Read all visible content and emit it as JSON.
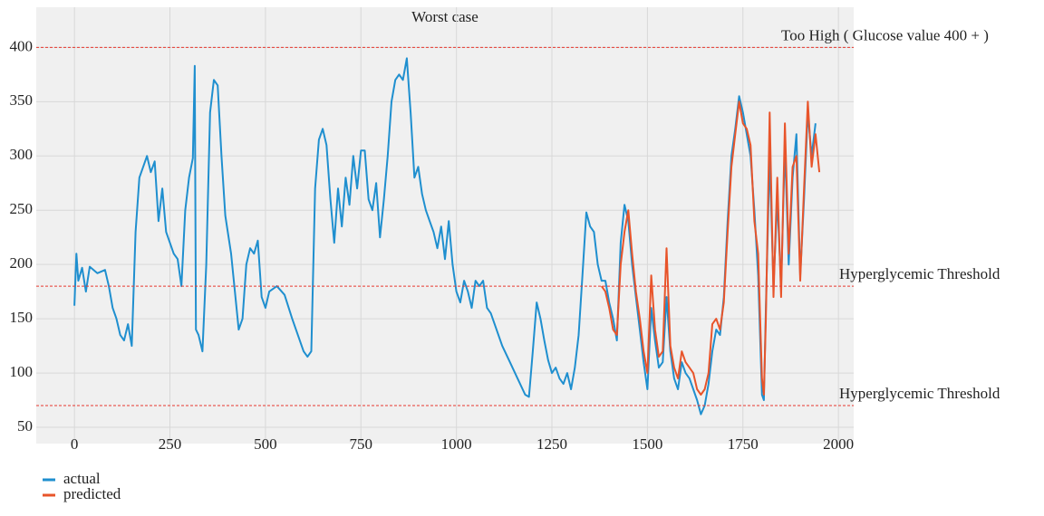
{
  "chart_data": {
    "type": "line",
    "title": "Worst case",
    "xlim": [
      -100,
      2040
    ],
    "ylim": [
      35,
      437
    ],
    "xticks": [
      0,
      250,
      500,
      750,
      1000,
      1250,
      1500,
      1750,
      2000
    ],
    "yticks": [
      50,
      100,
      150,
      200,
      250,
      300,
      350,
      400
    ],
    "grid": true,
    "legend": "bottom-left",
    "thresholds": [
      {
        "value": 400,
        "label": "Too High ( Glucose value 400 + )",
        "color": "#e8392f"
      },
      {
        "value": 180,
        "label": "Hyperglycemic Threshold",
        "color": "#e8392f"
      },
      {
        "value": 70,
        "label": "Hyperglycemic Threshold",
        "color": "#e8392f"
      }
    ],
    "series": [
      {
        "name": "actual",
        "color": "#1f8fcf",
        "x": [
          0,
          5,
          10,
          20,
          30,
          40,
          60,
          80,
          90,
          100,
          110,
          120,
          130,
          140,
          150,
          160,
          170,
          180,
          190,
          200,
          210,
          220,
          230,
          240,
          250,
          260,
          270,
          280,
          290,
          300,
          310,
          315,
          318,
          325,
          335,
          345,
          355,
          365,
          375,
          385,
          395,
          410,
          420,
          430,
          440,
          450,
          460,
          470,
          480,
          490,
          500,
          510,
          530,
          550,
          570,
          590,
          600,
          610,
          620,
          630,
          640,
          650,
          660,
          670,
          680,
          690,
          700,
          710,
          720,
          730,
          740,
          750,
          760,
          770,
          780,
          790,
          800,
          810,
          820,
          830,
          840,
          850,
          860,
          870,
          880,
          890,
          900,
          910,
          920,
          930,
          940,
          950,
          960,
          970,
          980,
          990,
          1000,
          1010,
          1020,
          1030,
          1040,
          1050,
          1060,
          1070,
          1080,
          1090,
          1100,
          1120,
          1140,
          1160,
          1180,
          1190,
          1200,
          1210,
          1220,
          1230,
          1240,
          1250,
          1260,
          1270,
          1280,
          1290,
          1300,
          1310,
          1320,
          1330,
          1340,
          1350,
          1360,
          1370,
          1380,
          1390,
          1400,
          1410,
          1420,
          1430,
          1440,
          1450,
          1460,
          1470,
          1480,
          1490,
          1500,
          1510,
          1520,
          1530,
          1540,
          1550,
          1560,
          1570,
          1580,
          1590,
          1600,
          1610,
          1620,
          1630,
          1640,
          1650,
          1660,
          1670,
          1680,
          1690,
          1700,
          1710,
          1720,
          1730,
          1740,
          1750,
          1760,
          1770,
          1780,
          1790,
          1800,
          1805,
          1810,
          1820,
          1830,
          1840,
          1850,
          1860,
          1870,
          1880,
          1890,
          1900,
          1910,
          1920,
          1930,
          1940
        ],
        "values": [
          162,
          210,
          185,
          197,
          175,
          198,
          192,
          195,
          180,
          160,
          150,
          135,
          130,
          145,
          125,
          230,
          280,
          290,
          300,
          285,
          295,
          240,
          270,
          230,
          220,
          210,
          205,
          180,
          250,
          280,
          298,
          383,
          140,
          135,
          120,
          200,
          340,
          370,
          365,
          300,
          245,
          210,
          175,
          140,
          150,
          200,
          215,
          210,
          222,
          170,
          160,
          175,
          180,
          172,
          150,
          130,
          120,
          115,
          120,
          270,
          315,
          325,
          310,
          260,
          220,
          270,
          235,
          280,
          255,
          300,
          270,
          305,
          305,
          260,
          250,
          275,
          225,
          260,
          300,
          350,
          370,
          375,
          370,
          390,
          340,
          280,
          290,
          265,
          250,
          240,
          230,
          215,
          235,
          205,
          240,
          200,
          175,
          165,
          185,
          175,
          160,
          185,
          180,
          185,
          160,
          155,
          145,
          125,
          110,
          95,
          80,
          78,
          120,
          165,
          150,
          130,
          112,
          100,
          105,
          95,
          90,
          100,
          85,
          105,
          135,
          190,
          248,
          235,
          230,
          200,
          185,
          185,
          165,
          150,
          130,
          220,
          255,
          240,
          200,
          170,
          140,
          110,
          85,
          160,
          130,
          105,
          110,
          170,
          120,
          95,
          85,
          110,
          100,
          95,
          85,
          75,
          62,
          70,
          90,
          120,
          140,
          135,
          170,
          240,
          300,
          325,
          355,
          340,
          320,
          300,
          250,
          190,
          80,
          75,
          160,
          300,
          180,
          260,
          180,
          310,
          200,
          280,
          320,
          190,
          260,
          340,
          300,
          330
        ]
      },
      {
        "name": "predicted",
        "color": "#e8542a",
        "x": [
          1380,
          1390,
          1400,
          1410,
          1420,
          1430,
          1440,
          1450,
          1460,
          1470,
          1480,
          1490,
          1500,
          1510,
          1520,
          1530,
          1540,
          1550,
          1560,
          1570,
          1580,
          1590,
          1600,
          1610,
          1620,
          1630,
          1640,
          1650,
          1660,
          1670,
          1680,
          1690,
          1700,
          1710,
          1720,
          1730,
          1740,
          1750,
          1760,
          1770,
          1780,
          1790,
          1800,
          1805,
          1810,
          1820,
          1830,
          1840,
          1850,
          1860,
          1870,
          1880,
          1890,
          1900,
          1910,
          1920,
          1930,
          1940,
          1950
        ],
        "values": [
          180,
          175,
          160,
          140,
          135,
          200,
          230,
          250,
          210,
          175,
          150,
          120,
          100,
          190,
          140,
          115,
          120,
          215,
          125,
          105,
          95,
          120,
          110,
          105,
          100,
          85,
          80,
          85,
          100,
          145,
          150,
          140,
          165,
          230,
          290,
          320,
          350,
          330,
          325,
          310,
          240,
          210,
          95,
          80,
          150,
          340,
          170,
          280,
          170,
          330,
          210,
          290,
          300,
          185,
          270,
          350,
          290,
          320,
          285
        ]
      }
    ]
  }
}
